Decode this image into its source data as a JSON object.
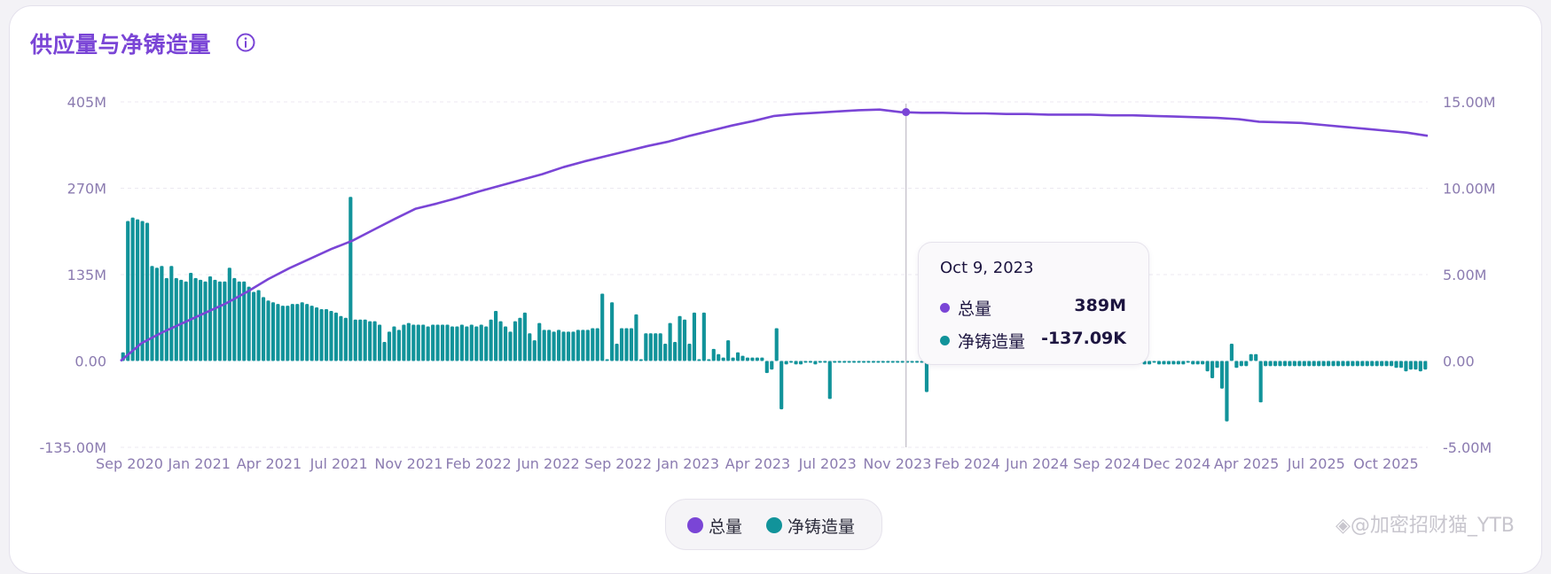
{
  "card": {
    "title": "供应量与净铸造量",
    "info_icon": "info-icon"
  },
  "colors": {
    "total": "#7a45d6",
    "net_mint": "#11939a",
    "grid": "#ece9f1",
    "axis_text": "#8b7bb0",
    "crosshair": "#c9c6cf"
  },
  "chart_data": {
    "type": "line+bar",
    "x_tick_labels": [
      "Sep 2020",
      "Jan 2021",
      "Apr 2021",
      "Jul 2021",
      "Nov 2021",
      "Feb 2022",
      "Jun 2022",
      "Sep 2022",
      "Jan 2023",
      "Apr 2023",
      "Jul 2023",
      "Nov 2023",
      "Feb 2024",
      "Jun 2024",
      "Sep 2024",
      "Dec 2024",
      "Apr 2025",
      "Jul 2025",
      "Oct 2025"
    ],
    "y_left": {
      "ticks": [
        "405M",
        "270M",
        "135M",
        "0.00",
        "-135.00M"
      ],
      "range_millions": [
        -135,
        405
      ]
    },
    "y_right": {
      "ticks": [
        "15.00M",
        "10.00M",
        "5.00M",
        "0.00",
        "-5.00M"
      ],
      "range_millions": [
        -5,
        15
      ]
    },
    "series": [
      {
        "name": "总量",
        "type": "line",
        "axis": "left",
        "unit": "millions",
        "points": [
          [
            "2020-09",
            0
          ],
          [
            "2020-10",
            28
          ],
          [
            "2020-11",
            45
          ],
          [
            "2020-12",
            60
          ],
          [
            "2021-01",
            75
          ],
          [
            "2021-02",
            90
          ],
          [
            "2021-03",
            108
          ],
          [
            "2021-04",
            128
          ],
          [
            "2021-05",
            145
          ],
          [
            "2021-06",
            160
          ],
          [
            "2021-07",
            175
          ],
          [
            "2021-08",
            188
          ],
          [
            "2021-09",
            205
          ],
          [
            "2021-10",
            222
          ],
          [
            "2021-11",
            238
          ],
          [
            "2021-12",
            246
          ],
          [
            "2022-01",
            255
          ],
          [
            "2022-02",
            265
          ],
          [
            "2022-03",
            274
          ],
          [
            "2022-04",
            283
          ],
          [
            "2022-05",
            292
          ],
          [
            "2022-06",
            303
          ],
          [
            "2022-07",
            312
          ],
          [
            "2022-08",
            320
          ],
          [
            "2022-09",
            328
          ],
          [
            "2022-10",
            336
          ],
          [
            "2022-11",
            343
          ],
          [
            "2022-12",
            352
          ],
          [
            "2023-01",
            360
          ],
          [
            "2023-02",
            368
          ],
          [
            "2023-03",
            375
          ],
          [
            "2023-04",
            383
          ],
          [
            "2023-05",
            386
          ],
          [
            "2023-06",
            388
          ],
          [
            "2023-07",
            390
          ],
          [
            "2023-08",
            392
          ],
          [
            "2023-09",
            393
          ],
          [
            "2023-10",
            389
          ],
          [
            "2023-11",
            388
          ],
          [
            "2023-12",
            388
          ],
          [
            "2024-01",
            387
          ],
          [
            "2024-02",
            387
          ],
          [
            "2024-03",
            386
          ],
          [
            "2024-04",
            386
          ],
          [
            "2024-05",
            385
          ],
          [
            "2024-06",
            385
          ],
          [
            "2024-07",
            385
          ],
          [
            "2024-08",
            384
          ],
          [
            "2024-09",
            384
          ],
          [
            "2024-10",
            383
          ],
          [
            "2024-11",
            382
          ],
          [
            "2024-12",
            381
          ],
          [
            "2025-01",
            380
          ],
          [
            "2025-02",
            378
          ],
          [
            "2025-03",
            374
          ],
          [
            "2025-04",
            373
          ],
          [
            "2025-05",
            372
          ],
          [
            "2025-06",
            369
          ],
          [
            "2025-07",
            366
          ],
          [
            "2025-08",
            363
          ],
          [
            "2025-09",
            360
          ],
          [
            "2025-10",
            357
          ],
          [
            "2025-11",
            352
          ]
        ]
      },
      {
        "name": "净铸造量",
        "type": "bar",
        "axis": "right",
        "unit": "millions",
        "values": [
          0.5,
          8.1,
          8.3,
          8.2,
          8.1,
          8.0,
          5.5,
          5.4,
          5.5,
          4.8,
          5.5,
          4.8,
          4.7,
          4.6,
          5.1,
          4.8,
          4.7,
          4.6,
          4.9,
          4.7,
          4.6,
          4.6,
          5.4,
          4.8,
          4.6,
          4.6,
          4.3,
          4.0,
          4.1,
          3.7,
          3.5,
          3.4,
          3.3,
          3.2,
          3.2,
          3.3,
          3.3,
          3.4,
          3.3,
          3.2,
          3.1,
          3.0,
          3.0,
          2.9,
          2.8,
          2.6,
          2.5,
          9.5,
          2.4,
          2.4,
          2.4,
          2.3,
          2.3,
          2.1,
          1.1,
          1.7,
          2.0,
          1.8,
          2.1,
          2.2,
          2.1,
          2.1,
          2.1,
          2.0,
          2.1,
          2.1,
          2.1,
          2.1,
          2.0,
          2.0,
          2.1,
          2.0,
          2.1,
          2.0,
          2.1,
          2.0,
          2.4,
          2.9,
          2.3,
          2.0,
          1.7,
          2.3,
          2.5,
          2.8,
          1.6,
          1.2,
          2.2,
          1.8,
          1.8,
          1.7,
          1.8,
          1.7,
          1.7,
          1.7,
          1.8,
          1.8,
          1.8,
          1.9,
          1.9,
          3.9,
          0.1,
          3.4,
          1.0,
          1.9,
          1.9,
          1.9,
          2.7,
          0.1,
          1.6,
          1.6,
          1.6,
          1.6,
          1.0,
          2.2,
          1.1,
          2.6,
          2.4,
          1.0,
          2.8,
          0.1,
          2.8,
          0.1,
          0.7,
          0.4,
          0.2,
          1.2,
          0.2,
          0.5,
          0.3,
          0.2,
          0.2,
          0.2,
          0.2,
          -0.7,
          -0.5,
          1.9,
          -2.8,
          -0.2,
          -0.1,
          -0.2,
          -0.2,
          -0.1,
          -0.1,
          -0.2,
          -0.1,
          -0.1,
          -2.2,
          -0.1,
          -0.1,
          -0.1,
          -0.1,
          -0.1,
          -0.1,
          -0.1,
          -0.1,
          -0.1,
          -0.1,
          -0.1,
          -0.1,
          -0.1,
          -0.1,
          -0.1,
          -0.1,
          -0.1,
          -0.1,
          -0.1,
          -1.8,
          -0.1,
          -0.1,
          -0.1,
          -0.1,
          -0.1,
          -0.1,
          -0.1,
          -0.1,
          -0.1,
          -0.1,
          -0.1,
          -0.1,
          -0.1,
          -0.1,
          -0.1,
          -0.1,
          -0.1,
          -0.1,
          -0.1,
          -0.1,
          -0.1,
          -0.1,
          -0.1,
          -0.1,
          -0.1,
          -0.1,
          -0.1,
          -0.1,
          -0.1,
          -0.1,
          -0.1,
          -0.1,
          -0.1,
          -0.1,
          -0.1,
          -0.1,
          -0.1,
          -0.1,
          -0.1,
          -0.1,
          -0.2,
          -0.1,
          -0.1,
          -0.1,
          -0.2,
          -0.2,
          -0.1,
          -0.2,
          -0.2,
          -0.2,
          -0.2,
          -0.2,
          -0.2,
          -0.1,
          -0.2,
          -0.2,
          -0.2,
          -0.6,
          -1.0,
          -0.4,
          -1.6,
          -3.5,
          1.0,
          -0.4,
          -0.3,
          -0.3,
          0.4,
          0.4,
          -2.4,
          -0.3,
          -0.3,
          -0.3,
          -0.3,
          -0.3,
          -0.3,
          -0.3,
          -0.3,
          -0.3,
          -0.3,
          -0.3,
          -0.3,
          -0.3,
          -0.3,
          -0.3,
          -0.3,
          -0.3,
          -0.3,
          -0.3,
          -0.3,
          -0.3,
          -0.3,
          -0.3,
          -0.3,
          -0.3,
          -0.3,
          -0.3,
          -0.4,
          -0.4,
          -0.6,
          -0.5,
          -0.5,
          -0.6,
          -0.5
        ],
        "start": "2020-09",
        "end": "2025-11"
      }
    ],
    "crosshair_date": "2023-10"
  },
  "tooltip": {
    "date": "Oct 9, 2023",
    "rows": [
      {
        "label": "总量",
        "value": "389M"
      },
      {
        "label": "净铸造量",
        "value": "-137.09K"
      }
    ]
  },
  "legend": {
    "items": [
      {
        "label": "总量"
      },
      {
        "label": "净铸造量"
      }
    ]
  },
  "watermark": "◈@加密招财猫_YTB"
}
